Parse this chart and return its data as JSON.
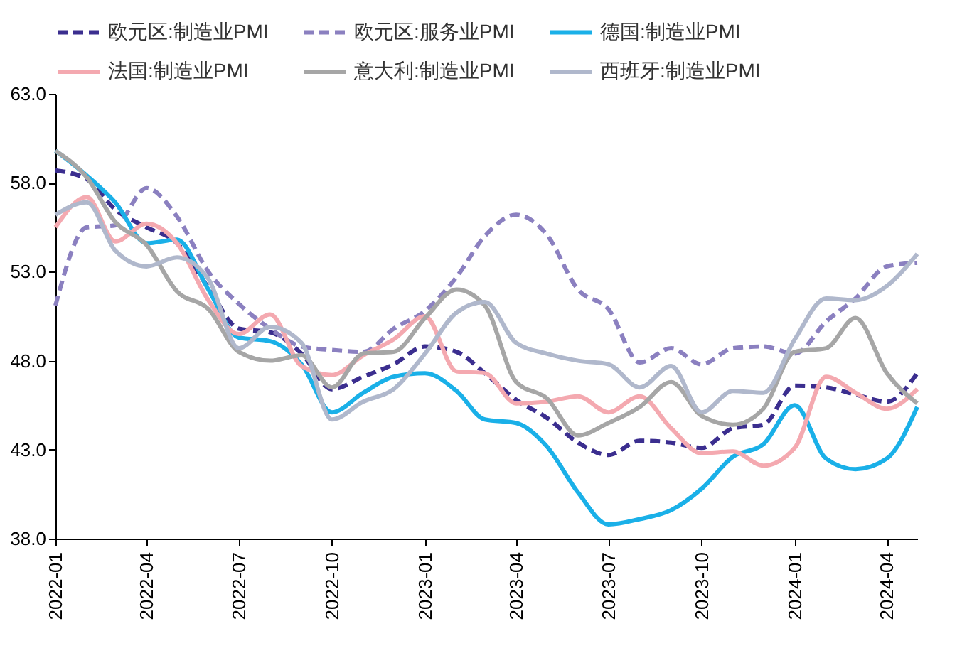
{
  "chart_data": {
    "type": "line",
    "x": [
      "2022-01",
      "2022-02",
      "2022-03",
      "2022-04",
      "2022-05",
      "2022-06",
      "2022-07",
      "2022-08",
      "2022-09",
      "2022-10",
      "2022-11",
      "2022-12",
      "2023-01",
      "2023-02",
      "2023-03",
      "2023-04",
      "2023-05",
      "2023-06",
      "2023-07",
      "2023-08",
      "2023-09",
      "2023-10",
      "2023-11",
      "2023-12",
      "2024-01",
      "2024-02",
      "2024-03",
      "2024-04",
      "2024-05"
    ],
    "series": [
      {
        "name": "欧元区:制造业PMI",
        "color": "#3b2e8f",
        "line_style": "dashed",
        "values": [
          58.7,
          58.2,
          56.5,
          55.5,
          54.6,
          52.1,
          49.8,
          49.6,
          48.4,
          46.4,
          47.1,
          47.8,
          48.8,
          48.5,
          47.3,
          45.8,
          44.8,
          43.4,
          42.7,
          43.5,
          43.4,
          43.1,
          44.2,
          44.4,
          46.6,
          46.5,
          46.1,
          45.7,
          47.3
        ]
      },
      {
        "name": "欧元区:服务业PMI",
        "color": "#8b80c0",
        "line_style": "dashed",
        "values": [
          51.1,
          55.5,
          55.6,
          57.7,
          56.1,
          53.0,
          51.2,
          49.8,
          48.8,
          48.6,
          48.5,
          49.8,
          50.8,
          52.7,
          55.0,
          56.2,
          55.1,
          52.0,
          50.9,
          47.9,
          48.7,
          47.8,
          48.7,
          48.8,
          48.4,
          50.2,
          51.5,
          53.3,
          53.5
        ]
      },
      {
        "name": "德国:制造业PMI",
        "color": "#1ab0e8",
        "line_style": "solid",
        "values": [
          59.8,
          58.4,
          56.9,
          54.6,
          54.8,
          52.0,
          49.3,
          49.1,
          47.8,
          45.1,
          46.2,
          47.1,
          47.3,
          46.3,
          44.7,
          44.5,
          43.2,
          40.6,
          38.8,
          39.1,
          39.6,
          40.8,
          42.6,
          43.3,
          45.5,
          42.5,
          41.9,
          42.5,
          45.4
        ]
      },
      {
        "name": "法国:制造业PMI",
        "color": "#f4a9b0",
        "line_style": "solid",
        "values": [
          55.5,
          57.2,
          54.7,
          55.7,
          54.6,
          51.4,
          49.5,
          50.6,
          47.7,
          47.2,
          48.3,
          49.2,
          50.5,
          47.4,
          47.3,
          45.6,
          45.7,
          46.0,
          45.1,
          46.0,
          44.2,
          42.8,
          42.9,
          42.1,
          43.1,
          47.1,
          46.2,
          45.3,
          46.4
        ]
      },
      {
        "name": "意大利:制造业PMI",
        "color": "#a6a6a6",
        "line_style": "solid",
        "values": [
          59.8,
          58.3,
          55.8,
          54.5,
          51.9,
          50.9,
          48.5,
          48.0,
          48.3,
          46.5,
          48.4,
          48.5,
          50.4,
          52.0,
          51.1,
          46.8,
          45.9,
          43.8,
          44.5,
          45.4,
          46.8,
          44.9,
          44.4,
          45.3,
          48.5,
          48.7,
          50.4,
          47.3,
          45.6
        ]
      },
      {
        "name": "西班牙:制造业PMI",
        "color": "#b0b8cc",
        "line_style": "solid",
        "values": [
          56.2,
          56.9,
          54.2,
          53.3,
          53.8,
          52.6,
          48.7,
          49.9,
          49.0,
          44.7,
          45.7,
          46.4,
          48.4,
          50.7,
          51.3,
          49.0,
          48.4,
          48.0,
          47.8,
          46.5,
          47.7,
          45.1,
          46.3,
          46.2,
          49.2,
          51.5,
          51.4,
          52.2,
          54.0
        ]
      }
    ],
    "ylim": [
      38,
      63
    ],
    "yticks": [
      {
        "value": 38,
        "label": "38.0"
      },
      {
        "value": 43,
        "label": "43.0"
      },
      {
        "value": 48,
        "label": "48.0"
      },
      {
        "value": 53,
        "label": "53.0"
      },
      {
        "value": 58,
        "label": "58.0"
      },
      {
        "value": 63,
        "label": "63.0"
      }
    ],
    "xlim": [
      "2022-01",
      "2024-05"
    ],
    "xticks": [
      "2022-01",
      "2022-04",
      "2022-07",
      "2022-10",
      "2023-01",
      "2023-04",
      "2023-07",
      "2023-10",
      "2024-01",
      "2024-04"
    ],
    "grid": false,
    "legend": "top",
    "marker": "none"
  }
}
